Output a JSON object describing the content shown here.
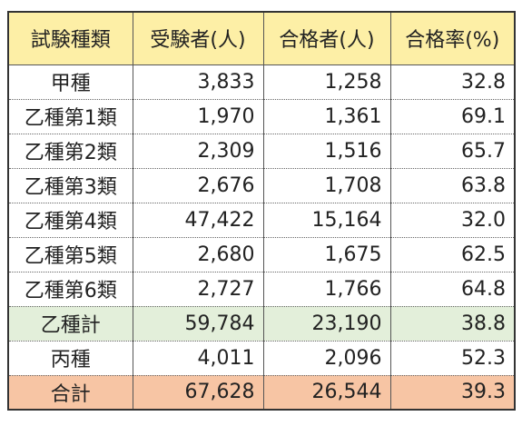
{
  "colors": {
    "header_bg": "#fdefa6",
    "subtotal_bg": "#e3efda",
    "total_bg": "#f7c5a4",
    "row_bg": "#ffffff",
    "border": "#333333"
  },
  "table": {
    "headers": [
      "試験種類",
      "受験者(人)",
      "合格者(人)",
      "合格率(%)"
    ],
    "rows": [
      {
        "name": "甲種",
        "takers": "3,833",
        "passers": "1,258",
        "rate": "32.8",
        "kind": "normal"
      },
      {
        "name": "乙種第1類",
        "takers": "1,970",
        "passers": "1,361",
        "rate": "69.1",
        "kind": "normal"
      },
      {
        "name": "乙種第2類",
        "takers": "2,309",
        "passers": "1,516",
        "rate": "65.7",
        "kind": "normal"
      },
      {
        "name": "乙種第3類",
        "takers": "2,676",
        "passers": "1,708",
        "rate": "63.8",
        "kind": "normal"
      },
      {
        "name": "乙種第4類",
        "takers": "47,422",
        "passers": "15,164",
        "rate": "32.0",
        "kind": "normal"
      },
      {
        "name": "乙種第5類",
        "takers": "2,680",
        "passers": "1,675",
        "rate": "62.5",
        "kind": "normal"
      },
      {
        "name": "乙種第6類",
        "takers": "2,727",
        "passers": "1,766",
        "rate": "64.8",
        "kind": "normal"
      },
      {
        "name": "乙種計",
        "takers": "59,784",
        "passers": "23,190",
        "rate": "38.8",
        "kind": "subtotal"
      },
      {
        "name": "丙種",
        "takers": "4,011",
        "passers": "2,096",
        "rate": "52.3",
        "kind": "normal"
      },
      {
        "name": "合計",
        "takers": "67,628",
        "passers": "26,544",
        "rate": "39.3",
        "kind": "total"
      }
    ]
  }
}
